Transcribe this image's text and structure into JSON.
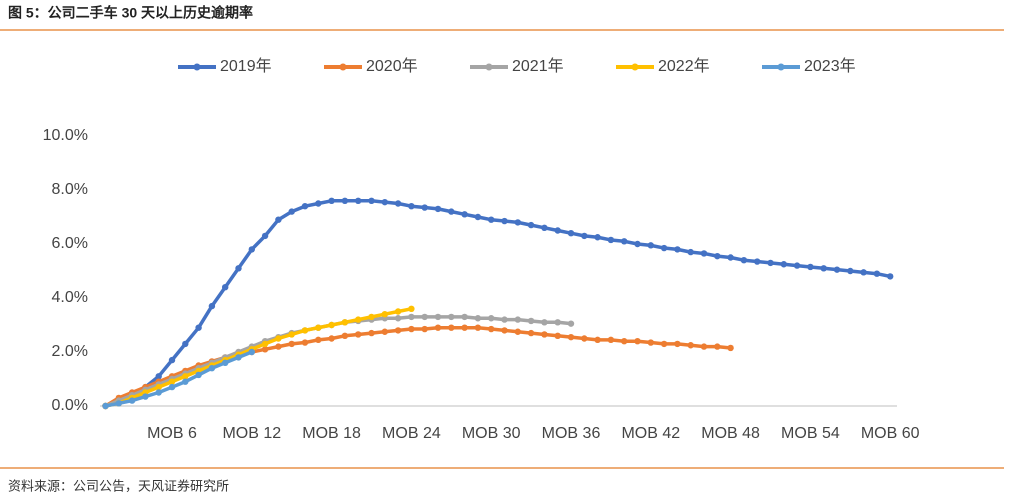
{
  "chart_data": {
    "type": "line",
    "title": "图 5：公司二手车 30 天以上历史逾期率",
    "source": "资料来源：公司公告，天风证券研究所",
    "categories": [
      null,
      null,
      null,
      null,
      null,
      "MOB 6",
      null,
      null,
      null,
      null,
      null,
      "MOB 12",
      null,
      null,
      null,
      null,
      null,
      "MOB 18",
      null,
      null,
      null,
      null,
      null,
      "MOB 24",
      null,
      null,
      null,
      null,
      null,
      "MOB 30",
      null,
      null,
      null,
      null,
      null,
      "MOB 36",
      null,
      null,
      null,
      null,
      null,
      "MOB 42",
      null,
      null,
      null,
      null,
      null,
      "MOB 48",
      null,
      null,
      null,
      null,
      null,
      "MOB 54",
      null,
      null,
      null,
      null,
      null,
      "MOB 60"
    ],
    "series": [
      {
        "name": "2019年",
        "color": "#4472c4",
        "values": [
          0.0,
          0.2,
          0.4,
          0.7,
          1.1,
          1.7,
          2.3,
          2.9,
          3.7,
          4.4,
          5.1,
          5.8,
          6.3,
          6.9,
          7.2,
          7.4,
          7.5,
          7.6,
          7.6,
          7.6,
          7.6,
          7.55,
          7.5,
          7.4,
          7.35,
          7.3,
          7.2,
          7.1,
          7.0,
          6.9,
          6.85,
          6.8,
          6.7,
          6.6,
          6.5,
          6.4,
          6.3,
          6.25,
          6.15,
          6.1,
          6.0,
          5.95,
          5.85,
          5.8,
          5.7,
          5.65,
          5.55,
          5.5,
          5.4,
          5.35,
          5.3,
          5.25,
          5.2,
          5.15,
          5.1,
          5.05,
          5.0,
          4.95,
          4.9,
          4.8
        ]
      },
      {
        "name": "2020年",
        "color": "#ed7d31",
        "values": [
          0.0,
          0.3,
          0.5,
          0.7,
          0.9,
          1.1,
          1.3,
          1.5,
          1.65,
          1.8,
          1.9,
          2.0,
          2.1,
          2.2,
          2.3,
          2.35,
          2.45,
          2.5,
          2.6,
          2.65,
          2.7,
          2.75,
          2.8,
          2.85,
          2.85,
          2.9,
          2.9,
          2.9,
          2.9,
          2.85,
          2.8,
          2.75,
          2.7,
          2.65,
          2.6,
          2.55,
          2.5,
          2.45,
          2.45,
          2.4,
          2.4,
          2.35,
          2.3,
          2.3,
          2.25,
          2.2,
          2.2,
          2.15,
          null,
          null,
          null,
          null,
          null,
          null,
          null,
          null,
          null,
          null,
          null,
          null
        ]
      },
      {
        "name": "2021年",
        "color": "#a5a5a5",
        "values": [
          0.0,
          0.2,
          0.4,
          0.6,
          0.8,
          1.0,
          1.2,
          1.4,
          1.6,
          1.8,
          2.0,
          2.2,
          2.4,
          2.55,
          2.7,
          2.8,
          2.9,
          3.0,
          3.1,
          3.15,
          3.2,
          3.25,
          3.25,
          3.3,
          3.3,
          3.3,
          3.3,
          3.3,
          3.25,
          3.25,
          3.2,
          3.2,
          3.15,
          3.1,
          3.1,
          3.05,
          null,
          null,
          null,
          null,
          null,
          null,
          null,
          null,
          null,
          null,
          null,
          null,
          null,
          null,
          null,
          null,
          null,
          null,
          null,
          null,
          null,
          null,
          null,
          null
        ]
      },
      {
        "name": "2022年",
        "color": "#ffc000",
        "values": [
          0.0,
          0.1,
          0.3,
          0.5,
          0.7,
          0.9,
          1.1,
          1.3,
          1.5,
          1.7,
          1.9,
          2.1,
          2.3,
          2.5,
          2.65,
          2.8,
          2.9,
          3.0,
          3.1,
          3.2,
          3.3,
          3.4,
          3.5,
          3.6,
          null,
          null,
          null,
          null,
          null,
          null,
          null,
          null,
          null,
          null,
          null,
          null,
          null,
          null,
          null,
          null,
          null,
          null,
          null,
          null,
          null,
          null,
          null,
          null,
          null,
          null,
          null,
          null,
          null,
          null,
          null,
          null,
          null,
          null,
          null,
          null
        ]
      },
      {
        "name": "2023年",
        "color": "#5b9bd5",
        "values": [
          0.0,
          0.1,
          0.2,
          0.35,
          0.5,
          0.7,
          0.9,
          1.15,
          1.4,
          1.6,
          1.8,
          2.0,
          null,
          null,
          null,
          null,
          null,
          null,
          null,
          null,
          null,
          null,
          null,
          null,
          null,
          null,
          null,
          null,
          null,
          null,
          null,
          null,
          null,
          null,
          null,
          null,
          null,
          null,
          null,
          null,
          null,
          null,
          null,
          null,
          null,
          null,
          null,
          null,
          null,
          null,
          null,
          null,
          null,
          null,
          null,
          null,
          null,
          null,
          null,
          null
        ]
      }
    ],
    "ylim": [
      0,
      10
    ],
    "yticks": [
      {
        "value": 0,
        "label": "0.0%"
      },
      {
        "value": 2,
        "label": "2.0%"
      },
      {
        "value": 4,
        "label": "4.0%"
      },
      {
        "value": 6,
        "label": "6.0%"
      },
      {
        "value": 8,
        "label": "8.0%"
      },
      {
        "value": 10,
        "label": "10.0%"
      }
    ],
    "legend": "top"
  }
}
